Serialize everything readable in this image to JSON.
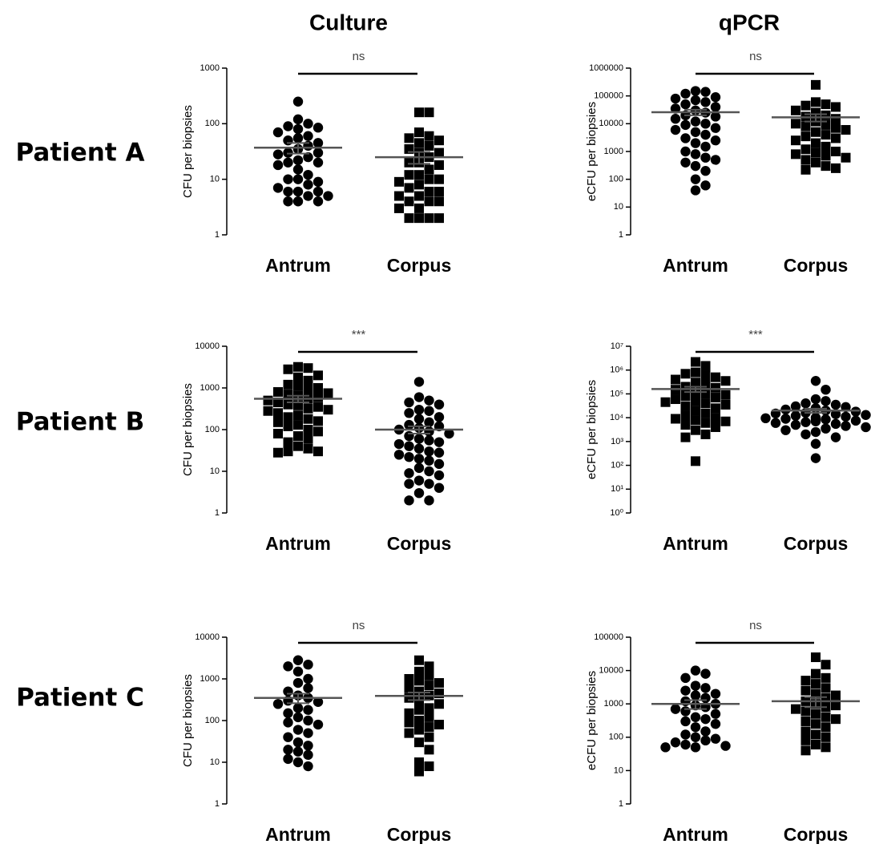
{
  "column_titles": [
    "Culture",
    "qPCR"
  ],
  "row_labels": [
    "Patient A",
    "Patient B",
    "Patient C"
  ],
  "chart_data": [
    {
      "type": "strip",
      "ylabel": "CFU per biopsies",
      "log": true,
      "categories": [
        "Antrum",
        "Corpus"
      ],
      "markers": [
        "circle",
        "square"
      ],
      "significance": "ns",
      "ylim": [
        1,
        1000
      ],
      "yticks": [
        1,
        10,
        100,
        1000
      ],
      "values": [
        [
          250,
          120,
          100,
          90,
          85,
          80,
          70,
          60,
          55,
          50,
          45,
          40,
          35,
          30,
          30,
          28,
          25,
          22,
          20,
          20,
          18,
          15,
          12,
          10,
          10,
          9,
          8,
          7,
          6,
          6,
          6,
          5,
          5,
          4,
          4,
          4
        ],
        [
          160,
          160,
          70,
          60,
          55,
          50,
          45,
          40,
          35,
          30,
          30,
          25,
          20,
          20,
          18,
          15,
          12,
          12,
          10,
          10,
          9,
          8,
          7,
          6,
          6,
          5,
          5,
          4,
          4,
          4,
          3,
          3,
          2,
          2,
          2,
          2
        ]
      ],
      "means": [
        37,
        25
      ],
      "sems": [
        8,
        6
      ]
    },
    {
      "type": "strip",
      "ylabel": "eCFU per biopsies",
      "log": true,
      "categories": [
        "Antrum",
        "Corpus"
      ],
      "markers": [
        "circle",
        "square"
      ],
      "significance": "ns",
      "ylim": [
        1,
        1000000
      ],
      "yticks": [
        1,
        10,
        100,
        1000,
        10000,
        100000,
        1000000
      ],
      "values": [
        [
          150000,
          140000,
          120000,
          90000,
          80000,
          70000,
          60000,
          50000,
          40000,
          35000,
          30000,
          25000,
          20000,
          18000,
          15000,
          12000,
          10000,
          9000,
          7000,
          6000,
          5000,
          4000,
          3000,
          2500,
          2000,
          1500,
          1000,
          800,
          600,
          500,
          400,
          300,
          200,
          100,
          60,
          40
        ],
        [
          250000,
          60000,
          50000,
          45000,
          40000,
          30000,
          25000,
          20000,
          18000,
          15000,
          12000,
          10000,
          9000,
          8000,
          7000,
          6000,
          5000,
          4000,
          3500,
          3000,
          2500,
          2000,
          1500,
          1200,
          1000,
          900,
          800,
          700,
          600,
          500,
          400,
          300,
          250,
          220
        ]
      ],
      "means": [
        26000,
        17000
      ],
      "sems": [
        6000,
        5000
      ]
    },
    {
      "type": "strip",
      "ylabel": "CFU per biopsies",
      "log": true,
      "categories": [
        "Antrum",
        "Corpus"
      ],
      "markers": [
        "square",
        "circle"
      ],
      "significance": "***",
      "ylim": [
        1,
        10000
      ],
      "yticks": [
        1,
        10,
        100,
        1000,
        10000
      ],
      "values": [
        [
          3200,
          3000,
          2800,
          2000,
          1800,
          1500,
          1200,
          1100,
          1000,
          900,
          800,
          750,
          700,
          650,
          600,
          550,
          500,
          450,
          400,
          380,
          350,
          320,
          300,
          280,
          250,
          220,
          200,
          180,
          160,
          150,
          130,
          120,
          100,
          90,
          80,
          70,
          60,
          50,
          40,
          35,
          30,
          30,
          28
        ],
        [
          1400,
          600,
          500,
          450,
          400,
          300,
          280,
          250,
          200,
          180,
          150,
          130,
          120,
          110,
          100,
          90,
          80,
          70,
          60,
          55,
          50,
          45,
          40,
          35,
          30,
          28,
          25,
          22,
          20,
          18,
          15,
          12,
          10,
          9,
          8,
          6,
          5,
          5,
          4,
          3,
          2,
          2
        ]
      ],
      "means": [
        550,
        100
      ],
      "sems": [
        100,
        20
      ]
    },
    {
      "type": "strip",
      "ylabel": "eCFU per biopsies",
      "log": true,
      "categories": [
        "Antrum",
        "Corpus"
      ],
      "markers": [
        "square",
        "circle"
      ],
      "significance": "***",
      "ylim": [
        1,
        10000000
      ],
      "yticks": [
        {
          "value": 1,
          "label": "10⁰"
        },
        {
          "value": 10,
          "label": "10¹"
        },
        {
          "value": 100,
          "label": "10²"
        },
        {
          "value": 1000,
          "label": "10³"
        },
        {
          "value": 10000,
          "label": "10⁴"
        },
        {
          "value": 100000,
          "label": "10⁵"
        },
        {
          "value": 1000000,
          "label": "10⁶"
        },
        {
          "value": 10000000,
          "label": "10⁷"
        }
      ],
      "values": [
        [
          2200000,
          1500000,
          800000,
          700000,
          600000,
          500000,
          400000,
          350000,
          300000,
          250000,
          200000,
          180000,
          150000,
          120000,
          100000,
          90000,
          80000,
          70000,
          60000,
          50000,
          45000,
          40000,
          35000,
          30000,
          25000,
          20000,
          15000,
          12000,
          10000,
          9000,
          8000,
          7000,
          6000,
          5000,
          4000,
          3000,
          2000,
          1500,
          150
        ],
        [
          350000,
          150000,
          60000,
          50000,
          40000,
          35000,
          30000,
          28000,
          25000,
          22000,
          20000,
          18000,
          16000,
          15000,
          14000,
          13000,
          12000,
          11000,
          10000,
          9500,
          9000,
          8500,
          8000,
          7500,
          7000,
          6500,
          6000,
          5500,
          5000,
          4500,
          4000,
          3500,
          3000,
          2500,
          2000,
          1500,
          800,
          200
        ]
      ],
      "means": [
        160000,
        20000
      ],
      "sems": [
        40000,
        4000
      ]
    },
    {
      "type": "strip",
      "ylabel": "CFU per biopsies",
      "log": true,
      "categories": [
        "Antrum",
        "Corpus"
      ],
      "markers": [
        "circle",
        "square"
      ],
      "significance": "ns",
      "ylim": [
        1,
        10000
      ],
      "yticks": [
        1,
        10,
        100,
        1000,
        10000
      ],
      "values": [
        [
          2800,
          2200,
          2000,
          1500,
          1000,
          800,
          600,
          500,
          400,
          350,
          300,
          280,
          250,
          200,
          180,
          150,
          120,
          100,
          90,
          80,
          60,
          50,
          40,
          30,
          25,
          20,
          18,
          15,
          12,
          10,
          8
        ],
        [
          2800,
          2000,
          1500,
          1200,
          1000,
          900,
          800,
          700,
          600,
          500,
          450,
          400,
          350,
          300,
          250,
          200,
          180,
          150,
          120,
          100,
          90,
          80,
          70,
          60,
          50,
          40,
          30,
          20,
          10,
          8,
          6
        ]
      ],
      "means": [
        350,
        390
      ],
      "sems": [
        90,
        80
      ]
    },
    {
      "type": "strip",
      "ylabel": "eCFU per biopsies",
      "log": true,
      "categories": [
        "Antrum",
        "Corpus"
      ],
      "markers": [
        "circle",
        "square"
      ],
      "significance": "ns",
      "ylim": [
        1,
        100000
      ],
      "yticks": [
        1,
        10,
        100,
        1000,
        10000,
        100000
      ],
      "values": [
        [
          10000,
          8000,
          6000,
          3500,
          3000,
          2500,
          2000,
          1800,
          1500,
          1200,
          1000,
          900,
          800,
          700,
          600,
          500,
          400,
          350,
          300,
          250,
          200,
          150,
          120,
          100,
          90,
          80,
          70,
          60,
          55,
          50,
          50
        ],
        [
          25000,
          15000,
          8000,
          6000,
          5000,
          4000,
          3000,
          2500,
          2000,
          1800,
          1500,
          1200,
          1000,
          900,
          800,
          700,
          600,
          500,
          400,
          350,
          300,
          250,
          200,
          150,
          120,
          100,
          80,
          60,
          50,
          40
        ]
      ],
      "means": [
        1000,
        1200
      ],
      "sems": [
        300,
        400
      ]
    }
  ]
}
